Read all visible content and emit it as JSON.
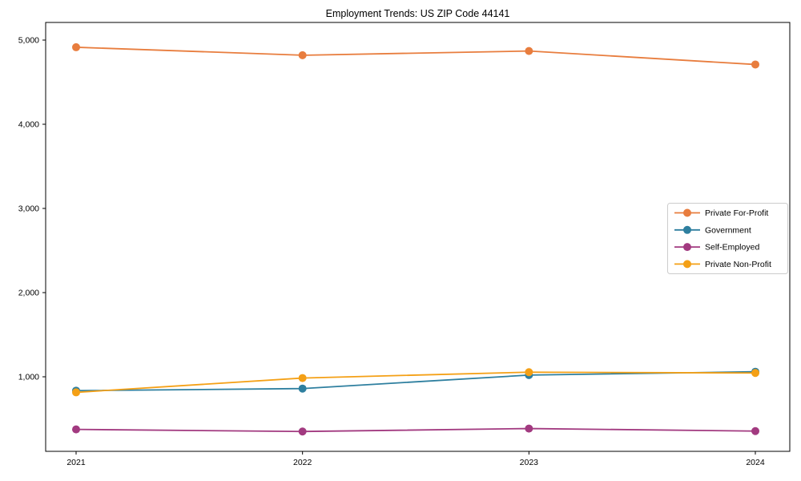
{
  "page": {
    "background_color": "#ffffff"
  },
  "chart_data": {
    "type": "line",
    "title": "Employment Trends: US ZIP Code 44141",
    "xlabel": "",
    "ylabel": "",
    "categories": [
      "2021",
      "2022",
      "2023",
      "2024"
    ],
    "series": [
      {
        "name": "Private For-Profit",
        "color": "#e87d3e",
        "values": [
          4915,
          4820,
          4870,
          4710
        ]
      },
      {
        "name": "Government",
        "color": "#2e7f9f",
        "values": [
          835,
          860,
          1020,
          1060
        ]
      },
      {
        "name": "Self-Employed",
        "color": "#a23a80",
        "values": [
          375,
          350,
          385,
          355
        ]
      },
      {
        "name": "Private Non-Profit",
        "color": "#f4a016",
        "values": [
          815,
          985,
          1055,
          1045
        ]
      }
    ],
    "y_ticks": [
      1000,
      2000,
      3000,
      4000,
      5000
    ],
    "y_tick_labels": [
      "1,000",
      "2,000",
      "3,000",
      "4,000",
      "5,000"
    ],
    "ylim": [
      115,
      5210
    ],
    "xlim_labels": [
      "2021",
      "2024"
    ],
    "grid": false,
    "marker": "circle",
    "legend_position": "middle-right"
  },
  "style": {
    "axis_color": "#000000",
    "legend_border_color": "#cccccc",
    "legend_background": "#ffffff",
    "text_color": "#000000"
  }
}
